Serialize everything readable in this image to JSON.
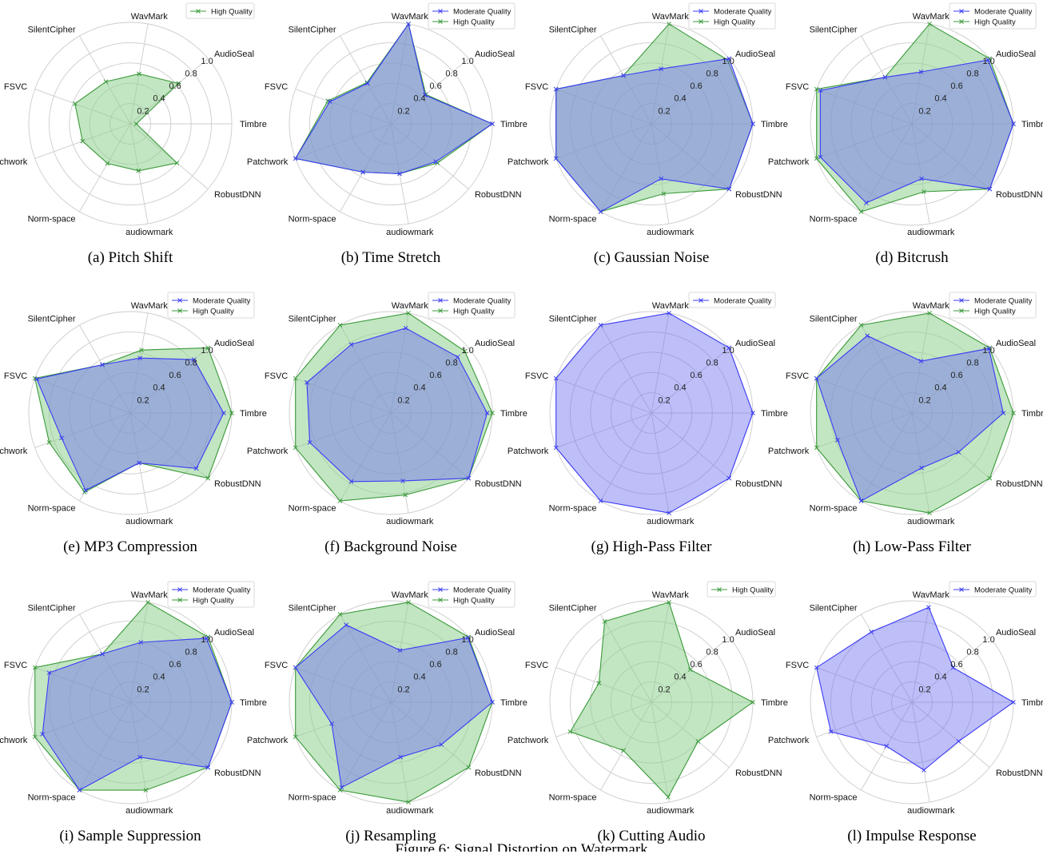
{
  "figure_caption": "Figure 6: Signal Distortion on Watermark",
  "colors": {
    "moderate": "#3b3bf5",
    "high": "#3a9a3a",
    "moderate_fill": "#6f6ff2",
    "high_fill": "#8fcf8f",
    "overlap_fill": "#4f7d9a"
  },
  "chart_data": [
    {
      "type": "radar",
      "title": "(a) Pitch Shift",
      "axes": [
        "Timbre",
        "AudioSeal",
        "WavMark",
        "SilentCipher",
        "FSVC",
        "Patchwork",
        "Norm-space",
        "audiowmark",
        "RobustDNN"
      ],
      "rticks": [
        "0.2",
        "0.4",
        "0.6",
        "0.8",
        "1.0"
      ],
      "rmax": 1.0,
      "legend_position": "top-right",
      "series": [
        {
          "name": "High Quality",
          "key": "high",
          "values": [
            0.06,
            0.62,
            0.5,
            0.48,
            0.58,
            0.5,
            0.45,
            0.47,
            0.6
          ]
        }
      ]
    },
    {
      "type": "radar",
      "title": "(b) Time Stretch",
      "axes": [
        "Timbre",
        "AudioSeal",
        "WavMark",
        "SilentCipher",
        "FSVC",
        "Patchwork",
        "Norm-space",
        "audiowmark",
        "RobustDNN"
      ],
      "rticks": [
        "0.2",
        "0.4",
        "0.6",
        "0.8",
        "1.0"
      ],
      "rmax": 1.0,
      "legend_position": "top-right",
      "series": [
        {
          "name": "Moderate Quality",
          "key": "moderate",
          "values": [
            1.0,
            0.44,
            1.0,
            0.46,
            0.64,
            1.0,
            0.55,
            0.5,
            0.58
          ]
        },
        {
          "name": "High Quality",
          "key": "high",
          "values": [
            1.0,
            0.45,
            1.0,
            0.47,
            0.66,
            1.0,
            0.55,
            0.5,
            0.6
          ]
        }
      ]
    },
    {
      "type": "radar",
      "title": "(c) Gaussian Noise",
      "axes": [
        "Timbre",
        "AudioSeal",
        "WavMark",
        "SilentCipher",
        "FSVC",
        "Patchwork",
        "Norm-space",
        "audiowmark",
        "RobustDNN"
      ],
      "rticks": [
        "0.2",
        "0.4",
        "0.6",
        "0.8",
        "1.0"
      ],
      "rmax": 1.0,
      "legend_position": "top-right",
      "series": [
        {
          "name": "Moderate Quality",
          "key": "moderate",
          "values": [
            1.0,
            1.0,
            0.55,
            0.55,
            1.0,
            1.0,
            1.0,
            0.55,
            1.0
          ]
        },
        {
          "name": "High Quality",
          "key": "high",
          "values": [
            1.0,
            0.98,
            1.0,
            0.55,
            1.0,
            1.0,
            1.0,
            0.7,
            1.0
          ]
        }
      ]
    },
    {
      "type": "radar",
      "title": "(d) Bitcrush",
      "axes": [
        "Timbre",
        "AudioSeal",
        "WavMark",
        "SilentCipher",
        "FSVC",
        "Patchwork",
        "Norm-space",
        "audiowmark",
        "RobustDNN"
      ],
      "rticks": [
        "0.2",
        "0.4",
        "0.6",
        "0.8",
        "1.0"
      ],
      "rmax": 1.0,
      "legend_position": "top-right",
      "series": [
        {
          "name": "Moderate Quality",
          "key": "moderate",
          "values": [
            1.0,
            0.98,
            0.52,
            0.53,
            0.96,
            0.96,
            0.9,
            0.55,
            1.0
          ]
        },
        {
          "name": "High Quality",
          "key": "high",
          "values": [
            1.0,
            1.0,
            1.0,
            0.53,
            1.0,
            1.0,
            1.0,
            0.68,
            1.0
          ]
        }
      ]
    },
    {
      "type": "radar",
      "title": "(e) MP3 Compression",
      "axes": [
        "Timbre",
        "AudioSeal",
        "WavMark",
        "SilentCipher",
        "FSVC",
        "Patchwork",
        "Norm-space",
        "audiowmark",
        "RobustDNN"
      ],
      "rticks": [
        "0.2",
        "0.4",
        "0.6",
        "0.8",
        "1.0"
      ],
      "rmax": 1.0,
      "legend_position": "top-right",
      "series": [
        {
          "name": "Moderate Quality",
          "key": "moderate",
          "values": [
            0.92,
            0.82,
            0.55,
            0.55,
            0.98,
            0.72,
            0.88,
            0.5,
            0.85
          ]
        },
        {
          "name": "High Quality",
          "key": "high",
          "values": [
            1.0,
            1.0,
            0.63,
            0.55,
            1.0,
            0.85,
            0.9,
            0.5,
            1.0
          ]
        }
      ]
    },
    {
      "type": "radar",
      "title": "(f) Background Noise",
      "axes": [
        "Timbre",
        "AudioSeal",
        "WavMark",
        "SilentCipher",
        "FSVC",
        "Patchwork",
        "Norm-space",
        "audiowmark",
        "RobustDNN"
      ],
      "rticks": [
        "0.2",
        "0.4",
        "0.6",
        "0.8",
        "1.0"
      ],
      "rmax": 1.0,
      "legend_position": "top-right",
      "series": [
        {
          "name": "Moderate Quality",
          "key": "moderate",
          "values": [
            0.95,
            0.86,
            0.85,
            0.78,
            0.88,
            0.85,
            0.78,
            0.68,
            1.0
          ]
        },
        {
          "name": "High Quality",
          "key": "high",
          "values": [
            1.0,
            0.95,
            1.0,
            1.0,
            1.0,
            1.0,
            1.0,
            0.82,
            1.0
          ]
        }
      ]
    },
    {
      "type": "radar",
      "title": "(g) High-Pass Filter",
      "axes": [
        "Timbre",
        "AudioSeal",
        "WavMark",
        "SilentCipher",
        "FSVC",
        "Patchwork",
        "Norm-space",
        "audiowmark",
        "RobustDNN"
      ],
      "rticks": [
        "0.2",
        "0.4",
        "0.6",
        "0.8",
        "1.0"
      ],
      "rmax": 1.0,
      "legend_position": "top-right",
      "series": [
        {
          "name": "Moderate Quality",
          "key": "moderate",
          "values": [
            1.0,
            1.0,
            1.0,
            1.0,
            1.0,
            1.0,
            1.0,
            1.0,
            1.0
          ]
        }
      ]
    },
    {
      "type": "radar",
      "title": "(h) Low-Pass Filter",
      "axes": [
        "Timbre",
        "AudioSeal",
        "WavMark",
        "SilentCipher",
        "FSVC",
        "Patchwork",
        "Norm-space",
        "audiowmark",
        "RobustDNN"
      ],
      "rticks": [
        "0.2",
        "0.4",
        "0.6",
        "0.8",
        "1.0"
      ],
      "rmax": 1.0,
      "legend_position": "top-right",
      "series": [
        {
          "name": "Moderate Quality",
          "key": "moderate",
          "values": [
            0.9,
            0.99,
            0.52,
            0.88,
            1.0,
            0.78,
            1.0,
            0.55,
            0.6
          ]
        },
        {
          "name": "High Quality",
          "key": "high",
          "values": [
            1.0,
            1.0,
            1.0,
            1.0,
            1.0,
            1.0,
            1.0,
            1.0,
            1.0
          ]
        }
      ]
    },
    {
      "type": "radar",
      "title": "(i) Sample Suppression",
      "axes": [
        "Timbre",
        "AudioSeal",
        "WavMark",
        "SilentCipher",
        "FSVC",
        "Patchwork",
        "Norm-space",
        "audiowmark",
        "RobustDNN"
      ],
      "rticks": [
        "0.2",
        "0.4",
        "0.6",
        "0.8",
        "1.0"
      ],
      "rmax": 1.0,
      "legend_position": "top-right",
      "series": [
        {
          "name": "Moderate Quality",
          "key": "moderate",
          "values": [
            1.0,
            0.98,
            0.6,
            0.55,
            0.85,
            0.92,
            1.0,
            0.55,
            1.0
          ]
        },
        {
          "name": "High Quality",
          "key": "high",
          "values": [
            1.0,
            1.0,
            1.0,
            0.55,
            1.0,
            1.0,
            1.0,
            0.88,
            1.0
          ]
        }
      ]
    },
    {
      "type": "radar",
      "title": "(j) Resampling",
      "axes": [
        "Timbre",
        "AudioSeal",
        "WavMark",
        "SilentCipher",
        "FSVC",
        "Patchwork",
        "Norm-space",
        "audiowmark",
        "RobustDNN"
      ],
      "rticks": [
        "0.2",
        "0.4",
        "0.6",
        "0.8",
        "1.0"
      ],
      "rmax": 1.0,
      "legend_position": "top-right",
      "series": [
        {
          "name": "Moderate Quality",
          "key": "moderate",
          "values": [
            1.0,
            0.99,
            0.52,
            0.88,
            1.0,
            0.62,
            0.97,
            0.55,
            0.65
          ]
        },
        {
          "name": "High Quality",
          "key": "high",
          "values": [
            1.0,
            1.0,
            1.0,
            1.0,
            1.0,
            1.0,
            1.0,
            1.0,
            1.0
          ]
        }
      ]
    },
    {
      "type": "radar",
      "title": "(k) Cutting Audio",
      "axes": [
        "Timbre",
        "AudioSeal",
        "WavMark",
        "SilentCipher",
        "FSVC",
        "Patchwork",
        "Norm-space",
        "audiowmark",
        "RobustDNN"
      ],
      "rticks": [
        "0.2",
        "0.4",
        "0.6",
        "0.8",
        "1.0"
      ],
      "rmax": 1.0,
      "legend_position": "top-right",
      "series": [
        {
          "name": "High Quality",
          "key": "high",
          "values": [
            1.0,
            0.5,
            1.0,
            0.92,
            0.55,
            0.85,
            0.55,
            0.95,
            0.6
          ]
        }
      ]
    },
    {
      "type": "radar",
      "title": "(l) Impulse Response",
      "axes": [
        "Timbre",
        "AudioSeal",
        "WavMark",
        "SilentCipher",
        "FSVC",
        "Patchwork",
        "Norm-space",
        "audiowmark",
        "RobustDNN"
      ],
      "rticks": [
        "0.2",
        "0.4",
        "0.6",
        "0.8",
        "1.0"
      ],
      "rmax": 1.0,
      "legend_position": "top-right",
      "series": [
        {
          "name": "Moderate Quality",
          "key": "moderate",
          "values": [
            1.0,
            0.53,
            0.95,
            0.8,
            1.0,
            0.85,
            0.5,
            0.68,
            0.6
          ]
        }
      ]
    }
  ]
}
